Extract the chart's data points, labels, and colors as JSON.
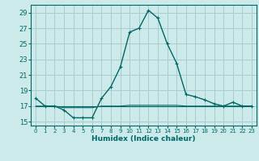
{
  "title": "",
  "xlabel": "Humidex (Indice chaleur)",
  "bg_color": "#cceaea",
  "grid_color": "#aacccc",
  "line_color": "#006666",
  "x_ticks": [
    0,
    1,
    2,
    3,
    4,
    5,
    6,
    7,
    8,
    9,
    10,
    11,
    12,
    13,
    14,
    15,
    16,
    17,
    18,
    19,
    20,
    21,
    22,
    23
  ],
  "y_ticks": [
    15,
    17,
    19,
    21,
    23,
    25,
    27,
    29
  ],
  "ylim": [
    14.5,
    30.0
  ],
  "xlim": [
    -0.5,
    23.5
  ],
  "series1_x": [
    0,
    1,
    2,
    3,
    4,
    5,
    6,
    7,
    8,
    9,
    10,
    11,
    12,
    13,
    14,
    15,
    16,
    17,
    18,
    19,
    20,
    21,
    22,
    23
  ],
  "series1_y": [
    18.0,
    17.0,
    17.0,
    16.5,
    15.5,
    15.5,
    15.5,
    18.0,
    19.5,
    22.0,
    26.5,
    27.0,
    29.3,
    28.3,
    25.0,
    22.5,
    18.5,
    18.2,
    17.8,
    17.3,
    17.0,
    17.5,
    17.0,
    17.0
  ],
  "series2_y": [
    17.0,
    17.0,
    17.0,
    17.0,
    17.0,
    17.0,
    17.0,
    17.0,
    17.0,
    17.0,
    17.0,
    17.0,
    17.0,
    17.0,
    17.0,
    17.0,
    17.0,
    17.0,
    17.0,
    17.0,
    17.0,
    17.0,
    17.0,
    17.0
  ],
  "series3_y": [
    17.0,
    17.0,
    17.0,
    16.8,
    16.8,
    16.8,
    16.8,
    17.0,
    17.0,
    17.0,
    17.1,
    17.1,
    17.1,
    17.1,
    17.1,
    17.1,
    17.0,
    17.0,
    17.0,
    17.0,
    17.0,
    17.0,
    17.0,
    17.0
  ]
}
